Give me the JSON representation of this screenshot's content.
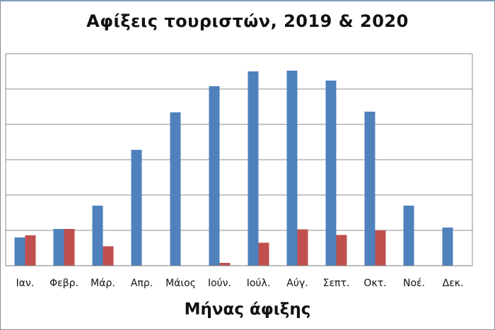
{
  "chart_data": {
    "type": "bar",
    "title": "Αφίξεις τουριστών, 2019 & 2020",
    "xlabel": "Μήνας άφιξης",
    "ylabel": "",
    "categories": [
      "Ιαν.",
      "Φεβρ.",
      "Μάρ.",
      "Απρ.",
      "Μάιος",
      "Ιούν.",
      "Ιούλ.",
      "Αύγ.",
      "Σεπτ.",
      "Οκτ.",
      "Νοέ.",
      "Δεκ."
    ],
    "series": [
      {
        "color": "#4f81bd",
        "values": [
          0.8,
          1.04,
          1.7,
          3.28,
          4.34,
          5.08,
          5.5,
          5.52,
          5.24,
          4.36,
          1.7,
          1.08
        ]
      },
      {
        "color": "#c0504d",
        "values": [
          0.86,
          1.04,
          0.55,
          0,
          0,
          0.08,
          0.65,
          1.03,
          0.87,
          1.0,
          0,
          0
        ]
      }
    ],
    "ylim": [
      0,
      6
    ],
    "ytick_count": 6,
    "grid": true,
    "legend": "none"
  }
}
